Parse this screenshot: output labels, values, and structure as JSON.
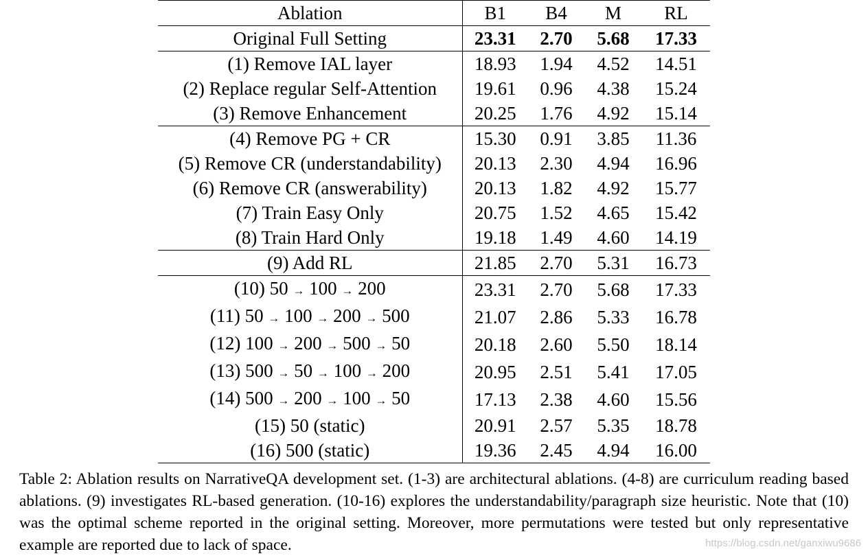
{
  "table": {
    "headers": [
      "Ablation",
      "B1",
      "B4",
      "M",
      "RL"
    ],
    "rows": [
      {
        "label": "Original Full Setting",
        "values": [
          "23.31",
          "2.70",
          "5.68",
          "17.33"
        ],
        "bold": true,
        "group_start": true
      },
      {
        "label": "(1) Remove IAL layer",
        "values": [
          "18.93",
          "1.94",
          "4.52",
          "14.51"
        ],
        "group_start": true
      },
      {
        "label": "(2) Replace regular Self-Attention",
        "values": [
          "19.61",
          "0.96",
          "4.38",
          "15.24"
        ]
      },
      {
        "label": "(3) Remove Enhancement",
        "values": [
          "20.25",
          "1.76",
          "4.92",
          "15.14"
        ]
      },
      {
        "label": "(4) Remove PG + CR",
        "values": [
          "15.30",
          "0.91",
          "3.85",
          "11.36"
        ],
        "group_start": true
      },
      {
        "label": "(5) Remove CR (understandability)",
        "values": [
          "20.13",
          "2.30",
          "4.94",
          "16.96"
        ]
      },
      {
        "label": "(6) Remove CR (answerability)",
        "values": [
          "20.13",
          "1.82",
          "4.92",
          "15.77"
        ]
      },
      {
        "label": "(7) Train Easy Only",
        "values": [
          "20.75",
          "1.52",
          "4.65",
          "15.42"
        ]
      },
      {
        "label": "(8) Train Hard Only",
        "values": [
          "19.18",
          "1.49",
          "4.60",
          "14.19"
        ]
      },
      {
        "label": "(9) Add RL",
        "values": [
          "21.85",
          "2.70",
          "5.31",
          "16.73"
        ],
        "group_start": true
      },
      {
        "label": "(10) 50 → 100 → 200",
        "values": [
          "23.31",
          "2.70",
          "5.68",
          "17.33"
        ],
        "group_start": true
      },
      {
        "label": "(11) 50 → 100 → 200 → 500",
        "values": [
          "21.07",
          "2.86",
          "5.33",
          "16.78"
        ]
      },
      {
        "label": "(12) 100 → 200 → 500 → 50",
        "values": [
          "20.18",
          "2.60",
          "5.50",
          "18.14"
        ]
      },
      {
        "label": "(13) 500 → 50 → 100 → 200",
        "values": [
          "20.95",
          "2.51",
          "5.41",
          "17.05"
        ]
      },
      {
        "label": "(14) 500 → 200 → 100 → 50",
        "values": [
          "17.13",
          "2.38",
          "4.60",
          "15.56"
        ]
      },
      {
        "label": "(15) 50 (static)",
        "values": [
          "20.91",
          "2.57",
          "5.35",
          "18.78"
        ]
      },
      {
        "label": "(16) 500 (static)",
        "values": [
          "19.36",
          "2.45",
          "4.94",
          "16.00"
        ]
      }
    ]
  },
  "caption": "Table 2: Ablation results on NarrativeQA development set. (1-3) are architectural ablations. (4-8) are curriculum reading based ablations. (9) investigates RL-based generation. (10-16) explores the understandability/paragraph size heuristic. Note that (10) was the optimal scheme reported in the original setting. Moreover, more permutations were tested but only representative example are reported due to lack of space.",
  "watermark": "https://blog.csdn.net/ganxiwu9686"
}
